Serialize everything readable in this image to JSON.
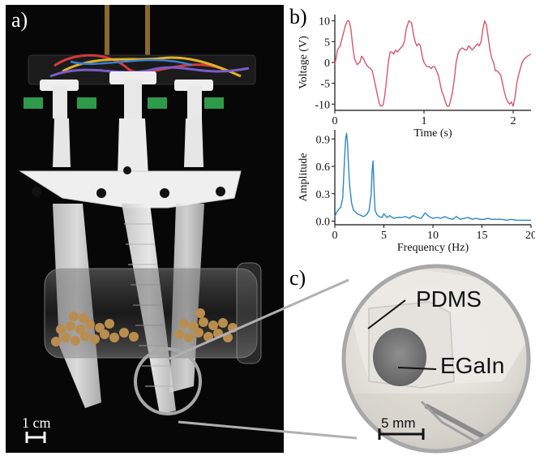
{
  "panels": {
    "a": {
      "label": "a)",
      "scale_bar": "1 cm"
    },
    "b": {
      "label": "b)"
    },
    "c": {
      "label": "c)",
      "material_1": "PDMS",
      "material_2": "EGaIn",
      "scale_bar": "5 mm"
    }
  },
  "chart_data": [
    {
      "type": "line",
      "title": "",
      "xlabel": "Time (s)",
      "ylabel": "Voltage (V)",
      "xlim": [
        0,
        2.2
      ],
      "ylim": [
        -11.5,
        11.5
      ],
      "xticks": [
        0,
        1,
        2
      ],
      "yticks": [
        -10,
        -5,
        0,
        5,
        10
      ],
      "grid": false,
      "color": "#d9566b",
      "series": [
        {
          "x": [
            0,
            0.03,
            0.06,
            0.09,
            0.12,
            0.14,
            0.16,
            0.18,
            0.2,
            0.22,
            0.25,
            0.28,
            0.3,
            0.32,
            0.34,
            0.37,
            0.4,
            0.42,
            0.44,
            0.46,
            0.48,
            0.5,
            0.52,
            0.54,
            0.56,
            0.58,
            0.6,
            0.62,
            0.64,
            0.66,
            0.68,
            0.7,
            0.72,
            0.74,
            0.76,
            0.78,
            0.8,
            0.83,
            0.86,
            0.88,
            0.9,
            0.92,
            0.94,
            0.96,
            0.98,
            1.0,
            1.03,
            1.06,
            1.08,
            1.1,
            1.12,
            1.14,
            1.16,
            1.18,
            1.2,
            1.22,
            1.24,
            1.26,
            1.28,
            1.3,
            1.32,
            1.34,
            1.36,
            1.38,
            1.4,
            1.43,
            1.46,
            1.48,
            1.5,
            1.52,
            1.54,
            1.56,
            1.58,
            1.6,
            1.62,
            1.64,
            1.66,
            1.68,
            1.7,
            1.72,
            1.74,
            1.76,
            1.78,
            1.8,
            1.82,
            1.84,
            1.86,
            1.88,
            1.9,
            1.92,
            1.94,
            1.96,
            1.98,
            2.0,
            2.02,
            2.04,
            2.06,
            2.08,
            2.1,
            2.13,
            2.16,
            2.2
          ],
          "y": [
            -0.5,
            3,
            4,
            6.5,
            9,
            10,
            10,
            8,
            4,
            1,
            -0.5,
            0,
            1.5,
            1,
            0,
            -1,
            -1.5,
            -2,
            -4,
            -6,
            -8,
            -10,
            -10.5,
            -10.3,
            -8,
            -4,
            0,
            2.5,
            2.5,
            2,
            3,
            2.5,
            3,
            3.5,
            4,
            5,
            8,
            10,
            9.5,
            7,
            5,
            4,
            4.5,
            4,
            1.5,
            0,
            -1,
            -1,
            -1.5,
            -1,
            -1,
            -2,
            -3,
            -5,
            -7,
            -8,
            -9.5,
            -10.5,
            -10.5,
            -9,
            -7,
            -4,
            0,
            2,
            3,
            3.5,
            3,
            3,
            4,
            3.5,
            3,
            3.5,
            4,
            4.5,
            4,
            5,
            8,
            10,
            9,
            6,
            3,
            1,
            0,
            -2,
            -2,
            -2.5,
            -3,
            -5,
            -7,
            -8.5,
            -9.5,
            -10,
            -9.5,
            -10.5,
            -8.5,
            -5,
            -3,
            -1.5,
            0,
            1,
            1.5,
            2
          ]
        }
      ]
    },
    {
      "type": "line",
      "title": "",
      "xlabel": "Frequency (Hz)",
      "ylabel": "Amplitude",
      "xlim": [
        0,
        20
      ],
      "ylim": [
        -0.04,
        1.0
      ],
      "xticks": [
        0,
        5,
        10,
        15,
        20
      ],
      "yticks": [
        0.0,
        0.3,
        0.6,
        0.9
      ],
      "grid": false,
      "color": "#2b88c0",
      "series": [
        {
          "x": [
            0,
            0.2,
            0.4,
            0.6,
            0.8,
            1.0,
            1.1,
            1.2,
            1.3,
            1.4,
            1.5,
            1.7,
            1.9,
            2.1,
            2.3,
            2.5,
            2.7,
            2.9,
            3.1,
            3.3,
            3.5,
            3.7,
            3.8,
            3.9,
            4.0,
            4.1,
            4.3,
            4.5,
            4.8,
            5.0,
            5.3,
            5.6,
            6.0,
            6.4,
            6.8,
            7.2,
            7.6,
            8.0,
            8.4,
            8.8,
            9.2,
            9.6,
            10.0,
            10.4,
            10.8,
            11.2,
            11.6,
            12.0,
            12.4,
            12.8,
            13.2,
            13.6,
            14.0,
            14.4,
            14.8,
            15.2,
            15.6,
            16.0,
            16.5,
            17.0,
            17.5,
            18.0,
            18.5,
            19.0,
            19.5,
            20.0
          ],
          "y": [
            0.05,
            0.1,
            0.13,
            0.15,
            0.25,
            0.7,
            0.9,
            0.96,
            0.85,
            0.6,
            0.4,
            0.2,
            0.12,
            0.1,
            0.08,
            0.07,
            0.06,
            0.05,
            0.06,
            0.08,
            0.12,
            0.3,
            0.55,
            0.66,
            0.35,
            0.12,
            0.07,
            0.05,
            0.04,
            0.08,
            0.04,
            0.06,
            0.03,
            0.04,
            0.04,
            0.05,
            0.03,
            0.06,
            0.04,
            0.03,
            0.09,
            0.05,
            0.03,
            0.04,
            0.03,
            0.05,
            0.03,
            0.02,
            0.05,
            0.02,
            0.03,
            0.04,
            0.02,
            0.03,
            0.02,
            0.02,
            0.03,
            0.02,
            0.02,
            0.02,
            0.01,
            0.02,
            0.01,
            0.01,
            0.01,
            0.01
          ]
        }
      ]
    }
  ]
}
